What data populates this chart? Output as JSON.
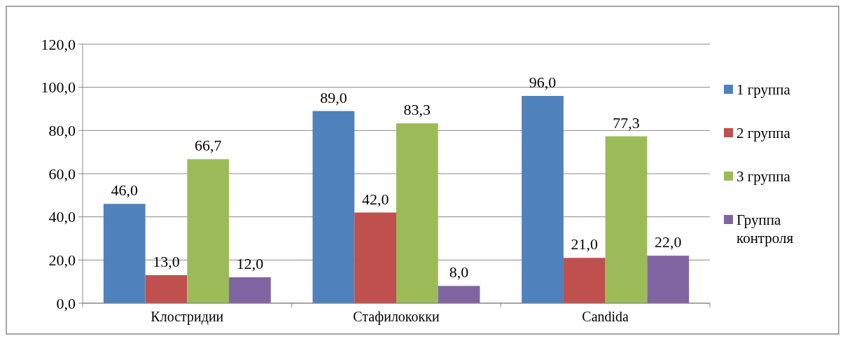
{
  "chart_data": {
    "type": "bar",
    "categories": [
      "Клостридии",
      "Стафилококки",
      "Candida"
    ],
    "series": [
      {
        "name": "1 группа",
        "color": "#4f81bd",
        "values": [
          46.0,
          89.0,
          96.0
        ],
        "value_labels": [
          "46,0",
          "89,0",
          "96,0"
        ]
      },
      {
        "name": "2 группа",
        "color": "#c0504d",
        "values": [
          13.0,
          42.0,
          21.0
        ],
        "value_labels": [
          "13,0",
          "42,0",
          "21,0"
        ]
      },
      {
        "name": "3 группа",
        "color": "#9bbb59",
        "values": [
          66.7,
          83.3,
          77.3
        ],
        "value_labels": [
          "66,7",
          "83,3",
          "77,3"
        ]
      },
      {
        "name": "Группа контроля",
        "color": "#8064a2",
        "values": [
          12.0,
          8.0,
          22.0
        ],
        "value_labels": [
          "12,0",
          "8,0",
          "22,0"
        ]
      }
    ],
    "ylim": [
      0,
      120
    ],
    "yticks": [
      {
        "value": 0,
        "label": "0,0"
      },
      {
        "value": 20,
        "label": "20,0"
      },
      {
        "value": 40,
        "label": "40,0"
      },
      {
        "value": 60,
        "label": "60,0"
      },
      {
        "value": 80,
        "label": "80,0"
      },
      {
        "value": 100,
        "label": "100,0"
      },
      {
        "value": 120,
        "label": "120,0"
      }
    ],
    "grid": "y",
    "legend": "right"
  }
}
